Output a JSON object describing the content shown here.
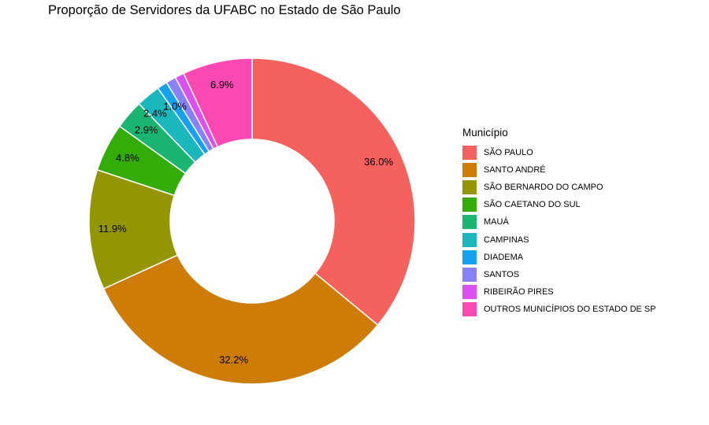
{
  "header": {
    "title": "Proporção de Servidores da UFABC no Estado de São Paulo"
  },
  "legend": {
    "title": "Município",
    "items": [
      {
        "label": "SÃO PAULO",
        "color": "#F8766D"
      },
      {
        "label": "SANTO ANDRÉ",
        "color": "#D39200"
      },
      {
        "label": "SÃO BERNARDO DO CAMPO",
        "color": "#93AA00"
      },
      {
        "label": "SÃO CAETANO DO SUL",
        "color": "#00BA38"
      },
      {
        "label": "MAUÁ",
        "color": "#00C19F"
      },
      {
        "label": "CAMPINAS",
        "color": "#00B9E3"
      },
      {
        "label": "DIADEMA",
        "color": "#619CFF"
      },
      {
        "label": "SANTOS",
        "color": "#DB72FB"
      },
      {
        "label": "RIBEIRÃO PIRES",
        "color": "#FF61C3"
      },
      {
        "label": "OUTROS MUNICÍPIOS DO ESTADO DE SP",
        "color": "#FF4FB8"
      }
    ]
  },
  "chart_data": {
    "type": "pie",
    "variant": "donut",
    "title": "Proporção de Servidores da UFABC no Estado de São Paulo",
    "legend_title": "Município",
    "legend_position": "right",
    "categories": [
      "SÃO PAULO",
      "SANTO ANDRÉ",
      "SÃO BERNARDO DO CAMPO",
      "SÃO CAETANO DO SUL",
      "MAUÁ",
      "CAMPINAS",
      "DIADEMA",
      "SANTOS",
      "RIBEIRÃO PIRES",
      "OUTROS MUNICÍPIOS DO ESTADO DE SP"
    ],
    "values": [
      36.0,
      32.2,
      11.9,
      4.8,
      2.9,
      2.4,
      1.0,
      1.0,
      0.9,
      6.9
    ],
    "labels": [
      "36.0%",
      "32.2%",
      "11.9%",
      "4.8%",
      "2.9%",
      "2.4%",
      "1.0%",
      "",
      "",
      "6.9%"
    ],
    "colors": [
      "#F5615C",
      "#CD7D06",
      "#939600",
      "#33AC07",
      "#1BB572",
      "#1AB8BC",
      "#14A2EE",
      "#8782FC",
      "#DC50F3",
      "#FB48B3"
    ],
    "unit": "%"
  }
}
